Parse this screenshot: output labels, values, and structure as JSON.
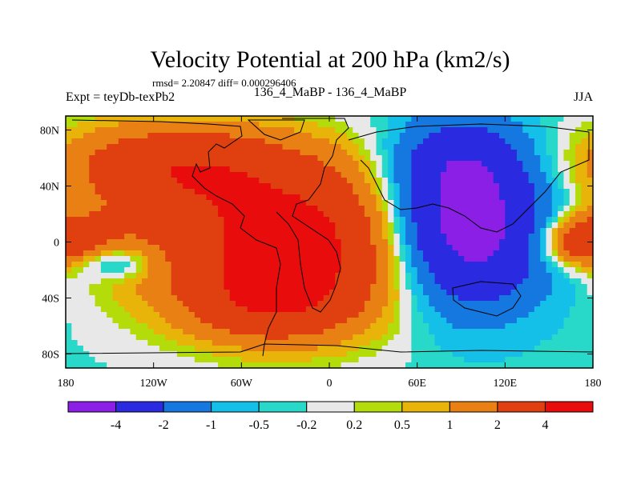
{
  "chart_data": {
    "type": "heatmap",
    "title": "Velocity Potential at 200 hPa (km2/s)",
    "stats": "rmsd= 2.20847 diff= 0.000296406",
    "left_label": "Expt = teyDb-texPb2",
    "center_label": "136_4_MaBP - 136_4_MaBP",
    "right_label": "JJA",
    "x_ticks": [
      "180",
      "120W",
      "60W",
      "0",
      "60E",
      "120E",
      "180"
    ],
    "y_ticks": [
      "80N",
      "40N",
      "0",
      "40S",
      "80S"
    ],
    "xlim": [
      -180,
      180
    ],
    "ylim": [
      -90,
      90
    ],
    "levels": [
      -4,
      -2,
      -1,
      -0.5,
      -0.2,
      0.2,
      0.5,
      1,
      2,
      4
    ],
    "level_labels": [
      "-4",
      "-2",
      "-1",
      "-0.5",
      "-0.2",
      "0.2",
      "0.5",
      "1",
      "2",
      "4"
    ],
    "colors": [
      "#8b1fe6",
      "#2a2ae0",
      "#1478e0",
      "#14c0e8",
      "#28d8c8",
      "#e8e8e8",
      "#b4dc0a",
      "#e8b40a",
      "#e88014",
      "#e04010",
      "#e80c0c"
    ],
    "field": {
      "background": -0.3,
      "centers": [
        {
          "lon": -20,
          "lat": 0,
          "amp": 5.2,
          "sx": 75,
          "sy": 40
        },
        {
          "lon": -110,
          "lat": 55,
          "amp": 3.2,
          "sx": 60,
          "sy": 22
        },
        {
          "lon": -40,
          "lat": -45,
          "amp": 2.2,
          "sx": 40,
          "sy": 20
        },
        {
          "lon": -170,
          "lat": 5,
          "amp": 1.5,
          "sx": 25,
          "sy": 15
        },
        {
          "lon": 90,
          "lat": 10,
          "amp": -6.2,
          "sx": 40,
          "sy": 40
        },
        {
          "lon": 90,
          "lat": 60,
          "amp": -1.5,
          "sx": 30,
          "sy": 20
        },
        {
          "lon": 170,
          "lat": 0,
          "amp": 3.0,
          "sx": 18,
          "sy": 12
        },
        {
          "lon": -145,
          "lat": -15,
          "amp": -1.8,
          "sx": 18,
          "sy": 8
        }
      ]
    }
  }
}
